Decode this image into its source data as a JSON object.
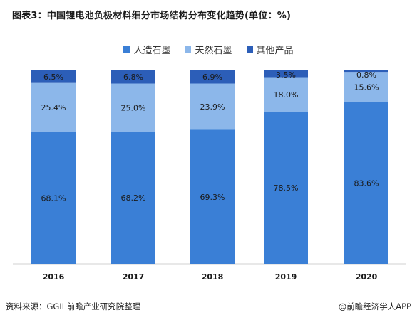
{
  "title": "图表3：中国锂电池负极材料细分市场结构分布变化趋势(单位：%)",
  "source": "资料来源：GGII 前瞻产业研究院整理",
  "credit": "@前瞻经济学人APP",
  "colors": {
    "人造石墨": "#3a7fd6",
    "天然石墨": "#8cb7ea",
    "其他产品": "#2c5eb8"
  },
  "chart_data": {
    "type": "bar",
    "stacked": true,
    "categories": [
      "2016",
      "2017",
      "2018",
      "2019",
      "2020"
    ],
    "series": [
      {
        "name": "人造石墨",
        "values": [
          68.1,
          68.2,
          69.3,
          78.5,
          83.6
        ],
        "labels": [
          "68.1%",
          "68.2%",
          "69.3%",
          "78.5%",
          "83.6%"
        ]
      },
      {
        "name": "天然石墨",
        "values": [
          25.4,
          25.0,
          23.9,
          18.0,
          15.6
        ],
        "labels": [
          "25.4%",
          "25.0%",
          "23.9%",
          "18.0%",
          "15.6%"
        ]
      },
      {
        "name": "其他产品",
        "values": [
          6.5,
          6.8,
          6.9,
          3.5,
          0.8
        ],
        "labels": [
          "6.5%",
          "6.8%",
          "6.9%",
          "3.5%",
          "0.8%"
        ]
      }
    ],
    "ylim": [
      0,
      100
    ],
    "legend": "top-center",
    "grid": false
  }
}
